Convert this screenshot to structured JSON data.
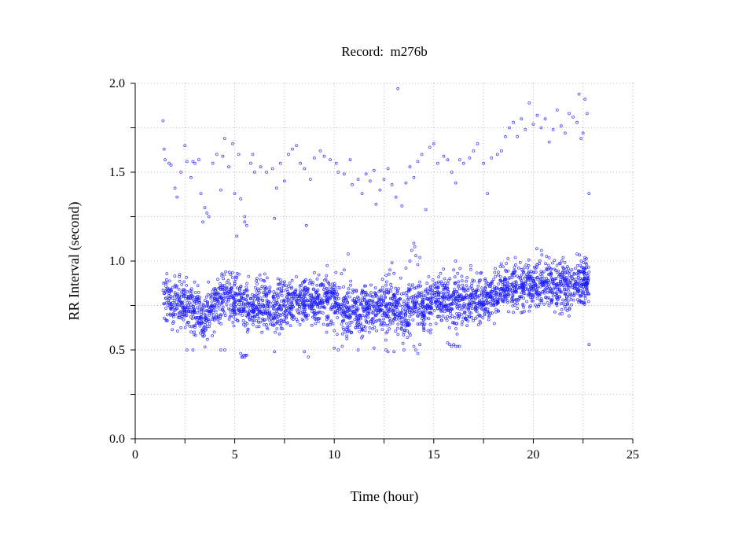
{
  "chart_data": {
    "type": "scatter",
    "title": "Record:  m276b",
    "xlabel": "Time (hour)",
    "ylabel": "RR Interval (second)",
    "xlim": [
      0,
      25
    ],
    "ylim": [
      0,
      2.0
    ],
    "xticks": [
      "0",
      "5",
      "10",
      "15",
      "20",
      "25"
    ],
    "xtick_values": [
      0,
      5,
      10,
      15,
      20,
      25
    ],
    "yticks": [
      "0.0",
      "0.5",
      "1.0",
      "1.5",
      "2.0"
    ],
    "ytick_values": [
      0,
      0.5,
      1.0,
      1.5,
      2.0
    ],
    "x_grid_step": 2.5,
    "y_grid_step": 0.25,
    "grid": true,
    "point_color": "#1a1aff",
    "main_band": {
      "description_note": "dense RR interval cloud: hourly trend mean with spread",
      "spread": 0.075,
      "points_per_segment": 70,
      "x": [
        1.4,
        2,
        2.5,
        3,
        3.5,
        4,
        4.5,
        5,
        5.5,
        6,
        6.5,
        7,
        7.5,
        8,
        8.5,
        9,
        9.5,
        10,
        10.5,
        11,
        11.5,
        12,
        12.5,
        13,
        13.5,
        14,
        14.5,
        15,
        15.5,
        16,
        16.5,
        17,
        17.5,
        18,
        18.5,
        19,
        19.5,
        20,
        20.5,
        21,
        21.5,
        22,
        22.5,
        22.8
      ],
      "mean": [
        0.78,
        0.76,
        0.77,
        0.74,
        0.66,
        0.78,
        0.8,
        0.77,
        0.74,
        0.75,
        0.76,
        0.74,
        0.76,
        0.78,
        0.78,
        0.78,
        0.78,
        0.77,
        0.73,
        0.72,
        0.73,
        0.73,
        0.73,
        0.74,
        0.7,
        0.76,
        0.74,
        0.78,
        0.8,
        0.76,
        0.78,
        0.78,
        0.8,
        0.8,
        0.84,
        0.85,
        0.86,
        0.86,
        0.88,
        0.87,
        0.86,
        0.88,
        0.88,
        0.86
      ]
    },
    "upper_points": [
      [
        1.4,
        1.79
      ],
      [
        1.45,
        1.63
      ],
      [
        1.5,
        1.57
      ],
      [
        1.7,
        1.55
      ],
      [
        1.8,
        1.54
      ],
      [
        2,
        1.41
      ],
      [
        2.1,
        1.36
      ],
      [
        2.3,
        1.5
      ],
      [
        2.5,
        1.65
      ],
      [
        2.6,
        1.56
      ],
      [
        2.8,
        1.47
      ],
      [
        2.9,
        1.56
      ],
      [
        3.0,
        1.55
      ],
      [
        3.2,
        1.57
      ],
      [
        3.3,
        1.38
      ],
      [
        3.4,
        1.22
      ],
      [
        3.5,
        1.3
      ],
      [
        3.6,
        1.27
      ],
      [
        3.7,
        1.25
      ],
      [
        3.9,
        1.55
      ],
      [
        4.1,
        1.6
      ],
      [
        4.3,
        1.4
      ],
      [
        4.4,
        1.59
      ],
      [
        4.5,
        1.69
      ],
      [
        4.7,
        1.53
      ],
      [
        4.9,
        1.66
      ],
      [
        5.0,
        1.38
      ],
      [
        5.1,
        1.14
      ],
      [
        5.2,
        1.6
      ],
      [
        5.3,
        1.35
      ],
      [
        5.5,
        1.25
      ],
      [
        5.5,
        1.22
      ],
      [
        5.6,
        1.2
      ],
      [
        5.8,
        1.55
      ],
      [
        5.9,
        1.6
      ],
      [
        6.0,
        1.5
      ],
      [
        6.3,
        1.53
      ],
      [
        6.6,
        1.5
      ],
      [
        6.9,
        1.52
      ],
      [
        7.0,
        1.24
      ],
      [
        7.1,
        1.41
      ],
      [
        7.3,
        1.55
      ],
      [
        7.5,
        1.45
      ],
      [
        7.7,
        1.6
      ],
      [
        7.9,
        1.63
      ],
      [
        8.1,
        1.65
      ],
      [
        8.3,
        1.55
      ],
      [
        8.5,
        1.52
      ],
      [
        8.6,
        1.2
      ],
      [
        8.8,
        1.46
      ],
      [
        9.0,
        1.58
      ],
      [
        9.3,
        1.62
      ],
      [
        9.5,
        1.59
      ],
      [
        9.8,
        1.57
      ],
      [
        10.1,
        1.55
      ],
      [
        10.2,
        1.5
      ],
      [
        10.5,
        1.49
      ],
      [
        10.8,
        1.57
      ],
      [
        10.9,
        1.43
      ],
      [
        11.2,
        1.46
      ],
      [
        11.4,
        1.38
      ],
      [
        11.6,
        1.49
      ],
      [
        11.8,
        1.45
      ],
      [
        12.0,
        1.51
      ],
      [
        12.1,
        1.32
      ],
      [
        12.3,
        1.4
      ],
      [
        12.5,
        1.46
      ],
      [
        12.7,
        1.52
      ],
      [
        12.9,
        1.43
      ],
      [
        13.1,
        1.36
      ],
      [
        13.2,
        1.97
      ],
      [
        13.4,
        1.31
      ],
      [
        13.6,
        1.44
      ],
      [
        13.8,
        1.53
      ],
      [
        14.0,
        1.47
      ],
      [
        14.2,
        1.56
      ],
      [
        14.4,
        1.6
      ],
      [
        14.6,
        1.29
      ],
      [
        14.8,
        1.64
      ],
      [
        15.0,
        1.66
      ],
      [
        15.2,
        1.55
      ],
      [
        15.5,
        1.59
      ],
      [
        15.7,
        1.57
      ],
      [
        15.9,
        1.5
      ],
      [
        16.1,
        1.44
      ],
      [
        16.3,
        1.57
      ],
      [
        16.5,
        1.55
      ],
      [
        16.8,
        1.58
      ],
      [
        17.0,
        1.62
      ],
      [
        17.2,
        1.66
      ],
      [
        17.5,
        1.55
      ],
      [
        17.7,
        1.38
      ],
      [
        17.9,
        1.58
      ],
      [
        18.2,
        1.6
      ],
      [
        18.4,
        1.62
      ],
      [
        18.6,
        1.7
      ],
      [
        18.8,
        1.75
      ],
      [
        19.0,
        1.78
      ],
      [
        19.2,
        1.7
      ],
      [
        19.4,
        1.8
      ],
      [
        19.6,
        1.74
      ],
      [
        19.8,
        1.89
      ],
      [
        20.0,
        1.77
      ],
      [
        20.2,
        1.82
      ],
      [
        20.4,
        1.75
      ],
      [
        20.6,
        1.8
      ],
      [
        20.8,
        1.67
      ],
      [
        21.0,
        1.74
      ],
      [
        21.2,
        1.85
      ],
      [
        21.4,
        1.76
      ],
      [
        21.6,
        1.72
      ],
      [
        21.8,
        1.83
      ],
      [
        22.0,
        1.81
      ],
      [
        22.2,
        1.78
      ],
      [
        22.3,
        1.94
      ],
      [
        22.4,
        1.69
      ],
      [
        22.5,
        1.72
      ],
      [
        22.6,
        1.91
      ],
      [
        22.7,
        1.83
      ],
      [
        22.8,
        1.38
      ]
    ],
    "lower_points": [
      [
        2.6,
        0.5
      ],
      [
        2.9,
        0.5
      ],
      [
        4.3,
        0.5
      ],
      [
        4.5,
        0.5
      ],
      [
        5.3,
        0.48
      ],
      [
        5.35,
        0.46
      ],
      [
        5.4,
        0.46
      ],
      [
        5.45,
        0.47
      ],
      [
        5.5,
        0.46
      ],
      [
        5.55,
        0.47
      ],
      [
        5.6,
        0.47
      ],
      [
        7.0,
        0.49
      ],
      [
        8.5,
        0.49
      ],
      [
        8.7,
        0.46
      ],
      [
        10.0,
        0.51
      ],
      [
        10.2,
        0.5
      ],
      [
        10.4,
        0.52
      ],
      [
        11.2,
        0.5
      ],
      [
        12.0,
        0.51
      ],
      [
        12.6,
        0.5
      ],
      [
        12.7,
        0.49
      ],
      [
        13.0,
        0.49
      ],
      [
        13.5,
        0.5
      ],
      [
        14.0,
        0.52
      ],
      [
        14.1,
        0.5
      ],
      [
        14.2,
        0.48
      ],
      [
        14.3,
        0.53
      ],
      [
        15.7,
        0.54
      ],
      [
        15.8,
        0.53
      ],
      [
        15.9,
        0.52
      ],
      [
        16.0,
        0.53
      ],
      [
        16.1,
        0.52
      ],
      [
        16.2,
        0.52
      ],
      [
        16.3,
        0.52
      ],
      [
        22.8,
        0.53
      ]
    ],
    "spike_points": [
      [
        10.5,
        0.95
      ],
      [
        10.7,
        1.04
      ],
      [
        12.6,
        0.92
      ],
      [
        12.8,
        0.95
      ],
      [
        12.9,
        0.99
      ],
      [
        13.0,
        0.93
      ],
      [
        13.6,
        0.96
      ],
      [
        13.8,
        1.0
      ],
      [
        13.9,
        1.06
      ],
      [
        14.0,
        1.1
      ],
      [
        14.05,
        1.08
      ],
      [
        14.1,
        1.03
      ],
      [
        14.2,
        0.98
      ],
      [
        14.3,
        1.02
      ],
      [
        16.0,
        0.95
      ],
      [
        16.1,
        1.0
      ],
      [
        16.2,
        0.93
      ],
      [
        21.5,
        1.02
      ],
      [
        22.2,
        1.04
      ],
      [
        22.6,
        1.02
      ]
    ]
  }
}
